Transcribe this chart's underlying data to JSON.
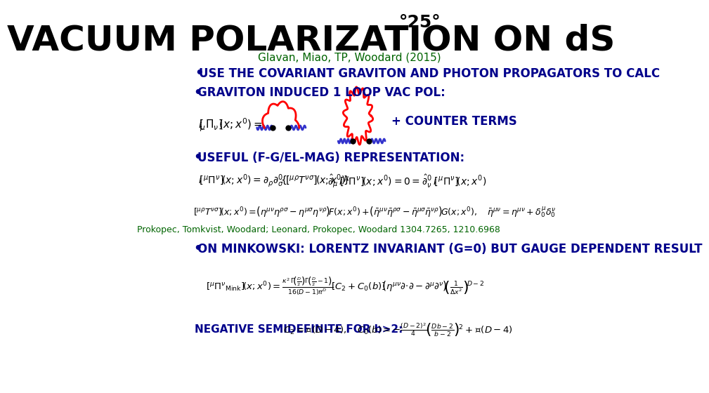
{
  "bg_color": "#ffffff",
  "title": "VACUUM POLARIZATION ON dS",
  "slide_num": "°25°",
  "title_fontsize": 36,
  "title_color": "#000000",
  "slide_num_color": "#000000",
  "slide_num_fontsize": 18,
  "author_line": "Glavan, Miao, TP, Woodard (2015)",
  "author_color": "#006400",
  "author_fontsize": 11,
  "bullet1": "USE THE COVARIANT GRAVITON AND PHOTON PROPAGATORS TO CALC",
  "bullet1_color": "#00008B",
  "bullet1_fontsize": 12,
  "bullet2": "GRAVITON INDUCED 1 LOOP VAC POL:",
  "bullet2_color": "#00008B",
  "bullet2_fontsize": 12,
  "counter_terms": "+ COUNTER TERMS",
  "counter_terms_color": "#00008B",
  "counter_terms_fontsize": 12,
  "bullet3": "USEFUL (F-G/EL-MAG) REPRESENTATION:",
  "bullet3_color": "#00008B",
  "bullet3_fontsize": 12,
  "prokopec_line": "Prokopec, Tomkvist, Woodard; Leonard, Prokopec, Woodard 1304.7265, 1210.6968",
  "prokopec_color": "#006400",
  "prokopec_fontsize": 9,
  "bullet4": "ON MINKOWSKI: LORENTZ INVARIANT (G=0) BUT GAUGE DEPENDENT RESULT",
  "bullet4_color": "#00008B",
  "bullet4_fontsize": 12,
  "neg_semi": "NEGATIVE SEMIDEFINITE FOR b>2:",
  "neg_semi_color": "#00008B",
  "neg_semi_fontsize": 11
}
